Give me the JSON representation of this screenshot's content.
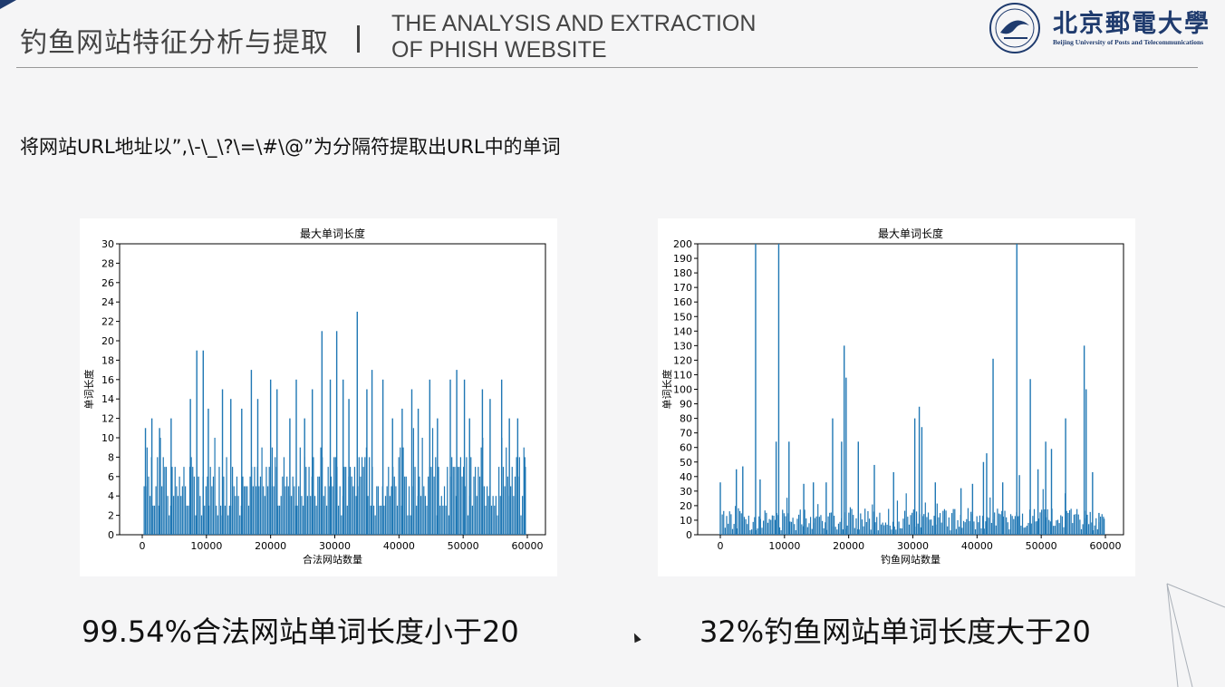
{
  "header": {
    "title_cn": "钓鱼网站特征分析与提取",
    "title_en_line1": "THE ANALYSIS AND EXTRACTION",
    "title_en_line2": "OF PHISH WEBSITE",
    "logo_text_cn": "北京郵電大學",
    "logo_text_en": "Beijing University of Posts and Telecommunications",
    "accent_color": "#1f3b6e"
  },
  "description": "将网站URL地址以”,\\-\\_\\?\\=\\#\\@”为分隔符提取出URL中的单词",
  "captions": {
    "left": "99.54%合法网站单词长度小于20",
    "right": "32%钓鱼网站单词长度大于20"
  },
  "chart_data": [
    {
      "type": "bar",
      "title": "最大单词长度",
      "xlabel": "合法网站数量",
      "ylabel": "单词长度",
      "xlim": [
        0,
        60000
      ],
      "ylim": [
        0,
        30
      ],
      "xticks": [
        0,
        10000,
        20000,
        30000,
        40000,
        50000,
        60000
      ],
      "yticks": [
        0,
        2,
        4,
        6,
        8,
        10,
        12,
        14,
        16,
        18,
        20,
        22,
        24,
        26,
        28,
        30
      ],
      "bar_color": "#1f77b4",
      "grid": false,
      "peaks": [
        {
          "x": 500,
          "y": 11
        },
        {
          "x": 1500,
          "y": 12
        },
        {
          "x": 2700,
          "y": 11
        },
        {
          "x": 4500,
          "y": 12
        },
        {
          "x": 7500,
          "y": 14
        },
        {
          "x": 8500,
          "y": 19
        },
        {
          "x": 9500,
          "y": 19
        },
        {
          "x": 10300,
          "y": 13
        },
        {
          "x": 12500,
          "y": 15
        },
        {
          "x": 13800,
          "y": 14
        },
        {
          "x": 15500,
          "y": 13
        },
        {
          "x": 17000,
          "y": 17
        },
        {
          "x": 18000,
          "y": 14
        },
        {
          "x": 20000,
          "y": 16
        },
        {
          "x": 21000,
          "y": 15
        },
        {
          "x": 23000,
          "y": 12
        },
        {
          "x": 24000,
          "y": 16
        },
        {
          "x": 25300,
          "y": 12
        },
        {
          "x": 26500,
          "y": 15
        },
        {
          "x": 28000,
          "y": 21
        },
        {
          "x": 29300,
          "y": 16
        },
        {
          "x": 30300,
          "y": 21
        },
        {
          "x": 31300,
          "y": 16
        },
        {
          "x": 32200,
          "y": 14
        },
        {
          "x": 33500,
          "y": 23
        },
        {
          "x": 35000,
          "y": 15
        },
        {
          "x": 35800,
          "y": 17
        },
        {
          "x": 37500,
          "y": 16
        },
        {
          "x": 39000,
          "y": 12
        },
        {
          "x": 40500,
          "y": 13
        },
        {
          "x": 42000,
          "y": 15
        },
        {
          "x": 43000,
          "y": 13
        },
        {
          "x": 44800,
          "y": 16
        },
        {
          "x": 46000,
          "y": 12
        },
        {
          "x": 48000,
          "y": 16
        },
        {
          "x": 49000,
          "y": 17
        },
        {
          "x": 50200,
          "y": 16
        },
        {
          "x": 51000,
          "y": 12
        },
        {
          "x": 53000,
          "y": 15
        },
        {
          "x": 54200,
          "y": 14
        },
        {
          "x": 56000,
          "y": 16
        },
        {
          "x": 57200,
          "y": 12
        },
        {
          "x": 58500,
          "y": 12
        },
        {
          "x": 59600,
          "y": 8
        }
      ],
      "typical_range": [
        2,
        8
      ]
    },
    {
      "type": "bar",
      "title": "最大单词长度",
      "xlabel": "钓鱼网站数量",
      "ylabel": "单词长度",
      "xlim": [
        0,
        60000
      ],
      "ylim": [
        0,
        200
      ],
      "xticks": [
        0,
        10000,
        20000,
        30000,
        40000,
        50000,
        60000
      ],
      "yticks": [
        0,
        10,
        20,
        30,
        40,
        50,
        60,
        70,
        80,
        90,
        100,
        110,
        120,
        130,
        140,
        150,
        160,
        170,
        180,
        190,
        200
      ],
      "bar_color": "#1f77b4",
      "grid": false,
      "peaks": [
        {
          "x": 0,
          "y": 36
        },
        {
          "x": 2500,
          "y": 45
        },
        {
          "x": 3500,
          "y": 47
        },
        {
          "x": 5500,
          "y": 200
        },
        {
          "x": 6200,
          "y": 38
        },
        {
          "x": 8700,
          "y": 64
        },
        {
          "x": 9100,
          "y": 200
        },
        {
          "x": 10700,
          "y": 64
        },
        {
          "x": 13000,
          "y": 35
        },
        {
          "x": 14500,
          "y": 36
        },
        {
          "x": 16500,
          "y": 36
        },
        {
          "x": 17500,
          "y": 80
        },
        {
          "x": 18900,
          "y": 64
        },
        {
          "x": 19300,
          "y": 130
        },
        {
          "x": 19600,
          "y": 108
        },
        {
          "x": 21500,
          "y": 64
        },
        {
          "x": 24000,
          "y": 48
        },
        {
          "x": 27000,
          "y": 43
        },
        {
          "x": 30300,
          "y": 80
        },
        {
          "x": 31000,
          "y": 88
        },
        {
          "x": 31400,
          "y": 74
        },
        {
          "x": 33500,
          "y": 36
        },
        {
          "x": 37500,
          "y": 32
        },
        {
          "x": 39300,
          "y": 35
        },
        {
          "x": 41000,
          "y": 50
        },
        {
          "x": 41500,
          "y": 56
        },
        {
          "x": 42500,
          "y": 121
        },
        {
          "x": 44000,
          "y": 36
        },
        {
          "x": 46200,
          "y": 200
        },
        {
          "x": 46600,
          "y": 41
        },
        {
          "x": 48300,
          "y": 107
        },
        {
          "x": 49500,
          "y": 45
        },
        {
          "x": 50700,
          "y": 64
        },
        {
          "x": 51600,
          "y": 59
        },
        {
          "x": 53800,
          "y": 80
        },
        {
          "x": 56700,
          "y": 130
        },
        {
          "x": 57000,
          "y": 100
        },
        {
          "x": 58000,
          "y": 43
        },
        {
          "x": 59000,
          "y": 15
        },
        {
          "x": 59800,
          "y": 11
        }
      ],
      "typical_range": [
        3,
        18
      ]
    }
  ]
}
